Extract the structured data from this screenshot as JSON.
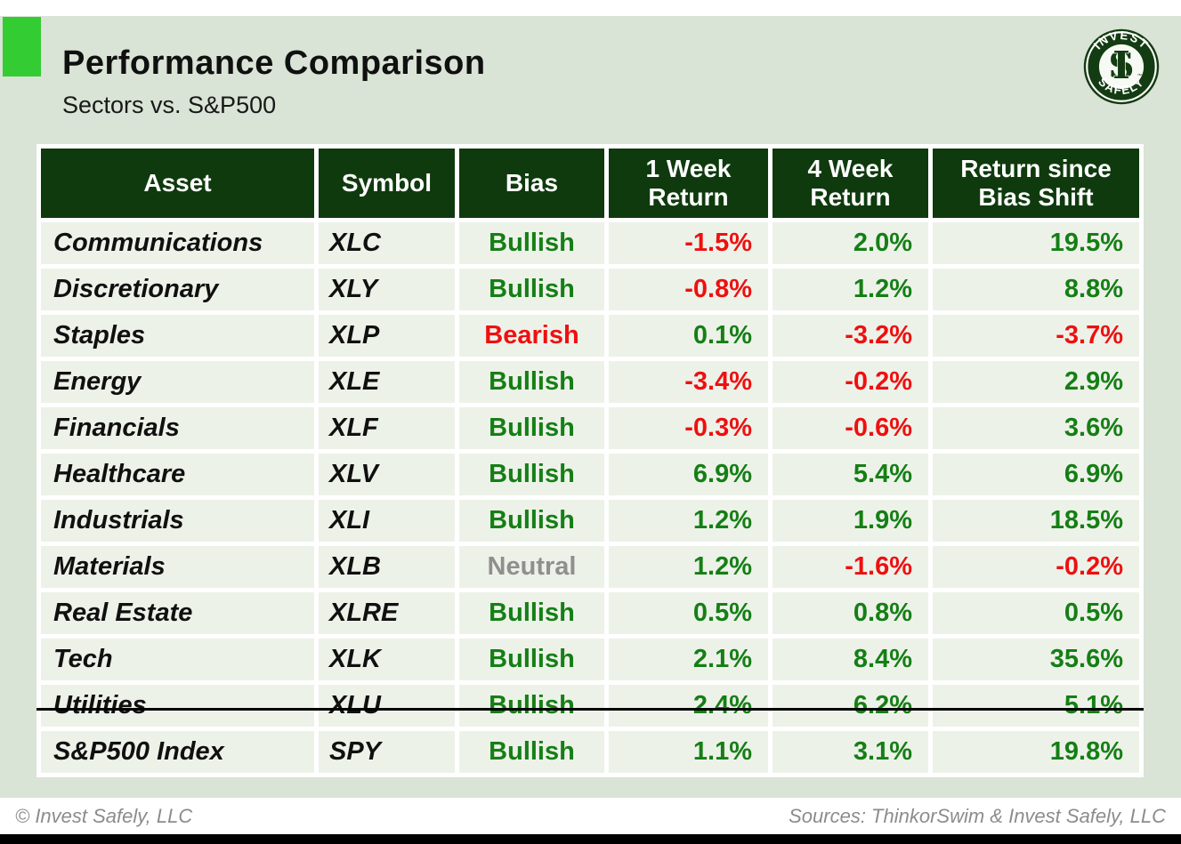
{
  "header": {
    "title": "Performance Comparison",
    "subtitle": "Sectors vs. S&P500"
  },
  "logo": {
    "top_text": "INVEST",
    "bottom_text": "SAFELY",
    "monogram_s": "S",
    "monogram_i": "I",
    "trademark": "™"
  },
  "table": {
    "columns": [
      "Asset",
      "Symbol",
      "Bias",
      "1 Week Return",
      "4 Week Return",
      "Return since Bias Shift"
    ],
    "rows": [
      {
        "asset": "Communications",
        "symbol": "XLC",
        "bias": "Bullish",
        "week1": "-1.5%",
        "week4": "2.0%",
        "since_shift": "19.5%",
        "index_row": false
      },
      {
        "asset": "Discretionary",
        "symbol": "XLY",
        "bias": "Bullish",
        "week1": "-0.8%",
        "week4": "1.2%",
        "since_shift": "8.8%",
        "index_row": false
      },
      {
        "asset": "Staples",
        "symbol": "XLP",
        "bias": "Bearish",
        "week1": "0.1%",
        "week4": "-3.2%",
        "since_shift": "-3.7%",
        "index_row": false
      },
      {
        "asset": "Energy",
        "symbol": "XLE",
        "bias": "Bullish",
        "week1": "-3.4%",
        "week4": "-0.2%",
        "since_shift": "2.9%",
        "index_row": false
      },
      {
        "asset": "Financials",
        "symbol": "XLF",
        "bias": "Bullish",
        "week1": "-0.3%",
        "week4": "-0.6%",
        "since_shift": "3.6%",
        "index_row": false
      },
      {
        "asset": "Healthcare",
        "symbol": "XLV",
        "bias": "Bullish",
        "week1": "6.9%",
        "week4": "5.4%",
        "since_shift": "6.9%",
        "index_row": false
      },
      {
        "asset": "Industrials",
        "symbol": "XLI",
        "bias": "Bullish",
        "week1": "1.2%",
        "week4": "1.9%",
        "since_shift": "18.5%",
        "index_row": false
      },
      {
        "asset": "Materials",
        "symbol": "XLB",
        "bias": "Neutral",
        "week1": "1.2%",
        "week4": "-1.6%",
        "since_shift": "-0.2%",
        "index_row": false
      },
      {
        "asset": "Real Estate",
        "symbol": "XLRE",
        "bias": "Bullish",
        "week1": "0.5%",
        "week4": "0.8%",
        "since_shift": "0.5%",
        "index_row": false
      },
      {
        "asset": "Tech",
        "symbol": "XLK",
        "bias": "Bullish",
        "week1": "2.1%",
        "week4": "8.4%",
        "since_shift": "35.6%",
        "index_row": false
      },
      {
        "asset": "Utilities",
        "symbol": "XLU",
        "bias": "Bullish",
        "week1": "2.4%",
        "week4": "6.2%",
        "since_shift": "5.1%",
        "index_row": false
      },
      {
        "asset": "S&P500 Index",
        "symbol": "SPY",
        "bias": "Bullish",
        "week1": "1.1%",
        "week4": "3.1%",
        "since_shift": "19.8%",
        "index_row": true
      }
    ]
  },
  "footer": {
    "copyright": "© Invest Safely, LLC",
    "sources": "Sources: ThinkorSwim & Invest Safely, LLC"
  },
  "colors": {
    "accent_green": "#33cc33",
    "header_green": "#0f3a0d",
    "page_tint": "#d9e3d6",
    "row_bg": "#edf2e9",
    "bullish": "#157f15",
    "bearish": "#ee1010",
    "neutral": "#8f8f8f"
  }
}
